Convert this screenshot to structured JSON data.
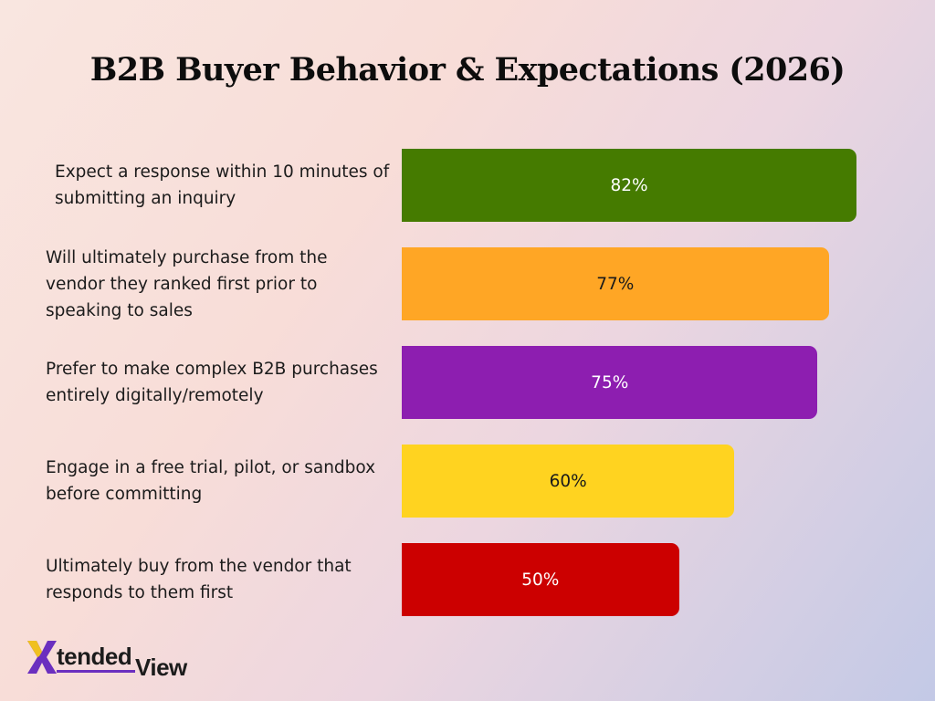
{
  "chart_data": {
    "type": "bar",
    "orientation": "horizontal",
    "title": "B2B Buyer Behavior & Expectations (2026)",
    "xlim": [
      0,
      100
    ],
    "grid": false,
    "legend": "none",
    "categories": [
      "Expect a response within 10 minutes of submitting an inquiry",
      "Will ultimately purchase from the vendor they ranked first prior to speaking to sales",
      "Prefer to make complex B2B purchases entirely digitally/remotely",
      "Engage in a free trial, pilot, or sandbox before committing",
      "Ultimately buy from the vendor that responds to them first"
    ],
    "values": [
      82,
      77,
      75,
      60,
      50
    ],
    "value_labels": [
      "82%",
      "77%",
      "75%",
      "60%",
      "50%"
    ],
    "colors": [
      "#457b00",
      "#ffa625",
      "#8d1eb0",
      "#ffd320",
      "#cc0000"
    ],
    "label_colors": [
      "#ffffff",
      "#1a1a1a",
      "#ffffff",
      "#1a1a1a",
      "#ffffff"
    ]
  },
  "logo": {
    "mark": "X",
    "text_main": "tended",
    "text_tail": "View"
  }
}
